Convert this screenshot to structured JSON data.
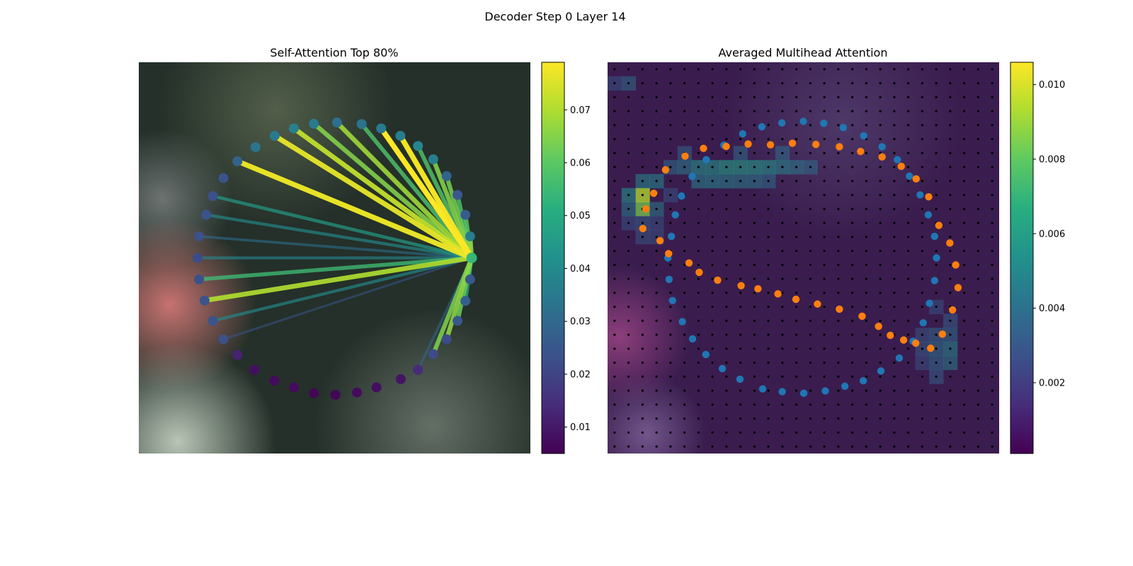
{
  "figure": {
    "suptitle": "Decoder Step 0 Layer 14"
  },
  "chart_data": [
    {
      "type": "scatter",
      "title": "Self-Attention Top 80%",
      "description_kind": "polygon-vertices-with-attention-edges",
      "background": "blurred-image",
      "x_range": [
        0,
        100
      ],
      "y_range": [
        0,
        100
      ],
      "colormap": "viridis",
      "colorbar": {
        "min": 0.005,
        "max": 0.079,
        "ticks": [
          0.01,
          0.02,
          0.03,
          0.04,
          0.05,
          0.06,
          0.07
        ]
      },
      "vertices": [
        {
          "x": 85.0,
          "y": 50.0,
          "v": 0.054
        },
        {
          "x": 84.6,
          "y": 44.5,
          "v": 0.036
        },
        {
          "x": 83.4,
          "y": 39.0,
          "v": 0.026
        },
        {
          "x": 81.4,
          "y": 33.9,
          "v": 0.025
        },
        {
          "x": 78.6,
          "y": 29.1,
          "v": 0.028
        },
        {
          "x": 75.2,
          "y": 24.8,
          "v": 0.036
        },
        {
          "x": 71.3,
          "y": 21.4,
          "v": 0.038
        },
        {
          "x": 66.8,
          "y": 18.8,
          "v": 0.036
        },
        {
          "x": 61.9,
          "y": 16.9,
          "v": 0.035
        },
        {
          "x": 56.9,
          "y": 15.8,
          "v": 0.033
        },
        {
          "x": 50.6,
          "y": 15.4,
          "v": 0.032
        },
        {
          "x": 44.7,
          "y": 15.7,
          "v": 0.035
        },
        {
          "x": 39.6,
          "y": 16.9,
          "v": 0.037
        },
        {
          "x": 34.7,
          "y": 18.8,
          "v": 0.035
        },
        {
          "x": 29.8,
          "y": 21.7,
          "v": 0.033
        },
        {
          "x": 25.2,
          "y": 25.3,
          "v": 0.028
        },
        {
          "x": 21.6,
          "y": 29.6,
          "v": 0.024
        },
        {
          "x": 18.9,
          "y": 34.2,
          "v": 0.023
        },
        {
          "x": 17.2,
          "y": 39.0,
          "v": 0.024
        },
        {
          "x": 15.4,
          "y": 44.5,
          "v": 0.023
        },
        {
          "x": 15.0,
          "y": 50.0,
          "v": 0.022
        },
        {
          "x": 15.4,
          "y": 55.5,
          "v": 0.023
        },
        {
          "x": 16.8,
          "y": 60.9,
          "v": 0.024
        },
        {
          "x": 18.9,
          "y": 66.1,
          "v": 0.024
        },
        {
          "x": 21.6,
          "y": 70.8,
          "v": 0.023
        },
        {
          "x": 25.2,
          "y": 74.8,
          "v": 0.012
        },
        {
          "x": 29.5,
          "y": 78.6,
          "v": 0.008
        },
        {
          "x": 34.6,
          "y": 81.4,
          "v": 0.007
        },
        {
          "x": 39.6,
          "y": 83.1,
          "v": 0.007
        },
        {
          "x": 44.7,
          "y": 84.6,
          "v": 0.006
        },
        {
          "x": 50.2,
          "y": 85.0,
          "v": 0.006
        },
        {
          "x": 55.7,
          "y": 84.4,
          "v": 0.007
        },
        {
          "x": 60.7,
          "y": 83.1,
          "v": 0.008
        },
        {
          "x": 66.9,
          "y": 81.0,
          "v": 0.009
        },
        {
          "x": 71.3,
          "y": 78.6,
          "v": 0.014
        },
        {
          "x": 75.2,
          "y": 74.6,
          "v": 0.022
        },
        {
          "x": 78.6,
          "y": 70.8,
          "v": 0.022
        },
        {
          "x": 81.4,
          "y": 66.1,
          "v": 0.025
        },
        {
          "x": 83.4,
          "y": 61.0,
          "v": 0.027
        },
        {
          "x": 84.6,
          "y": 55.5,
          "v": 0.025
        }
      ],
      "edges": [
        {
          "to": 1,
          "v": 0.066
        },
        {
          "to": 2,
          "v": 0.06
        },
        {
          "to": 3,
          "v": 0.058
        },
        {
          "to": 4,
          "v": 0.063
        },
        {
          "to": 5,
          "v": 0.065
        },
        {
          "to": 6,
          "v": 0.058
        },
        {
          "to": 7,
          "v": 0.078
        },
        {
          "to": 8,
          "v": 0.079
        },
        {
          "to": 9,
          "v": 0.058
        },
        {
          "to": 10,
          "v": 0.068
        },
        {
          "to": 11,
          "v": 0.065
        },
        {
          "to": 12,
          "v": 0.072
        },
        {
          "to": 13,
          "v": 0.076
        },
        {
          "to": 15,
          "v": 0.077
        },
        {
          "to": 17,
          "v": 0.045
        },
        {
          "to": 18,
          "v": 0.04
        },
        {
          "to": 19,
          "v": 0.032
        },
        {
          "to": 20,
          "v": 0.038
        },
        {
          "to": 21,
          "v": 0.055
        },
        {
          "to": 22,
          "v": 0.07
        },
        {
          "to": 23,
          "v": 0.04
        },
        {
          "to": 24,
          "v": 0.025
        },
        {
          "to": 34,
          "v": 0.03
        },
        {
          "to": 35,
          "v": 0.064
        },
        {
          "to": 36,
          "v": 0.066
        },
        {
          "to": 37,
          "v": 0.062
        },
        {
          "to": 38,
          "v": 0.052
        },
        {
          "to": 39,
          "v": 0.034
        }
      ]
    },
    {
      "type": "heatmap",
      "title": "Averaged Multihead Attention",
      "background": "blurred-image",
      "colormap": "viridis",
      "colorbar": {
        "min": 0.0001,
        "max": 0.0106,
        "ticks": [
          0.002,
          0.004,
          0.006,
          0.008,
          0.01
        ]
      },
      "grid_size": 28,
      "heat_cells": [
        {
          "c": 2,
          "r": 9,
          "v": 0.0095
        },
        {
          "c": 2,
          "r": 10,
          "v": 0.0085
        },
        {
          "c": 1,
          "r": 9,
          "v": 0.0055
        },
        {
          "c": 3,
          "r": 8,
          "v": 0.005
        },
        {
          "c": 2,
          "r": 8,
          "v": 0.005
        },
        {
          "c": 3,
          "r": 10,
          "v": 0.0045
        },
        {
          "c": 1,
          "r": 10,
          "v": 0.0045
        },
        {
          "c": 4,
          "r": 7,
          "v": 0.004
        },
        {
          "c": 5,
          "r": 7,
          "v": 0.0045
        },
        {
          "c": 6,
          "r": 7,
          "v": 0.0055
        },
        {
          "c": 7,
          "r": 7,
          "v": 0.0055
        },
        {
          "c": 8,
          "r": 7,
          "v": 0.006
        },
        {
          "c": 9,
          "r": 7,
          "v": 0.006
        },
        {
          "c": 10,
          "r": 7,
          "v": 0.0058
        },
        {
          "c": 11,
          "r": 7,
          "v": 0.0055
        },
        {
          "c": 12,
          "r": 7,
          "v": 0.005
        },
        {
          "c": 13,
          "r": 7,
          "v": 0.0045
        },
        {
          "c": 14,
          "r": 7,
          "v": 0.004
        },
        {
          "c": 6,
          "r": 8,
          "v": 0.0048
        },
        {
          "c": 7,
          "r": 8,
          "v": 0.005
        },
        {
          "c": 8,
          "r": 8,
          "v": 0.0048
        },
        {
          "c": 9,
          "r": 8,
          "v": 0.0045
        },
        {
          "c": 10,
          "r": 8,
          "v": 0.0045
        },
        {
          "c": 11,
          "r": 8,
          "v": 0.004
        },
        {
          "c": 5,
          "r": 6,
          "v": 0.0038
        },
        {
          "c": 9,
          "r": 6,
          "v": 0.004
        },
        {
          "c": 12,
          "r": 6,
          "v": 0.004
        },
        {
          "c": 24,
          "r": 20,
          "v": 0.005
        },
        {
          "c": 24,
          "r": 21,
          "v": 0.0045
        },
        {
          "c": 23,
          "r": 20,
          "v": 0.0042
        },
        {
          "c": 23,
          "r": 21,
          "v": 0.004
        },
        {
          "c": 23,
          "r": 19,
          "v": 0.0038
        },
        {
          "c": 24,
          "r": 19,
          "v": 0.004
        },
        {
          "c": 22,
          "r": 20,
          "v": 0.0035
        },
        {
          "c": 23,
          "r": 22,
          "v": 0.0035
        },
        {
          "c": 22,
          "r": 19,
          "v": 0.0032
        },
        {
          "c": 24,
          "r": 18,
          "v": 0.0035
        },
        {
          "c": 23,
          "r": 17,
          "v": 0.003
        },
        {
          "c": 22,
          "r": 21,
          "v": 0.003
        },
        {
          "c": 2,
          "r": 11,
          "v": 0.0035
        },
        {
          "c": 3,
          "r": 11,
          "v": 0.003
        },
        {
          "c": 2,
          "r": 12,
          "v": 0.0032
        },
        {
          "c": 3,
          "r": 12,
          "v": 0.003
        },
        {
          "c": 1,
          "r": 11,
          "v": 0.003
        },
        {
          "c": 4,
          "r": 9,
          "v": 0.003
        },
        {
          "c": 1,
          "r": 1,
          "v": 0.004
        },
        {
          "c": 0,
          "r": 1,
          "v": 0.003
        }
      ],
      "series": [
        {
          "color": "#1f77b4",
          "points": [
            [
              84.0,
              50.0
            ],
            [
              83.5,
              44.5
            ],
            [
              81.9,
              39.0
            ],
            [
              79.8,
              33.9
            ],
            [
              77.1,
              29.1
            ],
            [
              74.0,
              24.9
            ],
            [
              70.1,
              21.6
            ],
            [
              65.4,
              18.8
            ],
            [
              60.2,
              16.7
            ],
            [
              55.2,
              15.6
            ],
            [
              50.0,
              15.1
            ],
            [
              44.5,
              15.5
            ],
            [
              39.4,
              16.5
            ],
            [
              34.5,
              18.3
            ],
            [
              29.7,
              21.2
            ],
            [
              25.2,
              24.9
            ],
            [
              21.6,
              29.2
            ],
            [
              18.9,
              34.2
            ],
            [
              17.3,
              39.0
            ],
            [
              16.3,
              44.5
            ],
            [
              15.4,
              50.0
            ],
            [
              15.7,
              55.5
            ],
            [
              16.6,
              60.9
            ],
            [
              19.1,
              66.3
            ],
            [
              21.7,
              70.7
            ],
            [
              25.1,
              74.7
            ],
            [
              29.3,
              78.3
            ],
            [
              33.8,
              81.0
            ],
            [
              39.6,
              83.5
            ],
            [
              44.6,
              84.2
            ],
            [
              50.1,
              84.6
            ],
            [
              55.6,
              84.0
            ],
            [
              60.6,
              82.8
            ],
            [
              65.3,
              81.4
            ],
            [
              69.8,
              78.9
            ],
            [
              74.5,
              75.6
            ],
            [
              78.0,
              71.3
            ],
            [
              80.6,
              66.6
            ],
            [
              82.2,
              61.6
            ],
            [
              83.5,
              55.8
            ]
          ]
        },
        {
          "color": "#ff7f0e",
          "points": [
            [
              9.0,
              42.5
            ],
            [
              9.8,
              37.5
            ],
            [
              11.8,
              33.5
            ],
            [
              14.8,
              27.5
            ],
            [
              19.8,
              24.0
            ],
            [
              24.5,
              22.0
            ],
            [
              30.3,
              21.5
            ],
            [
              35.9,
              20.9
            ],
            [
              41.6,
              21.1
            ],
            [
              47.2,
              20.7
            ],
            [
              53.2,
              21.0
            ],
            [
              59.2,
              21.6
            ],
            [
              64.6,
              22.8
            ],
            [
              70.1,
              24.2
            ],
            [
              75.0,
              26.6
            ],
            [
              78.8,
              29.8
            ],
            [
              82.0,
              34.4
            ],
            [
              84.6,
              41.7
            ],
            [
              87.4,
              46.2
            ],
            [
              88.9,
              51.8
            ],
            [
              89.5,
              57.6
            ],
            [
              88.1,
              63.3
            ],
            [
              85.5,
              69.5
            ],
            [
              82.5,
              73.1
            ],
            [
              78.7,
              71.8
            ],
            [
              75.6,
              71.0
            ],
            [
              72.2,
              69.8
            ],
            [
              69.2,
              67.5
            ],
            [
              65.0,
              64.9
            ],
            [
              59.2,
              63.1
            ],
            [
              53.6,
              61.8
            ],
            [
              48.1,
              60.6
            ],
            [
              43.5,
              59.2
            ],
            [
              38.4,
              57.9
            ],
            [
              34.1,
              57.1
            ],
            [
              28.1,
              55.7
            ],
            [
              23.4,
              53.7
            ],
            [
              20.8,
              51.3
            ],
            [
              15.6,
              48.9
            ],
            [
              13.4,
              45.6
            ]
          ]
        }
      ]
    }
  ]
}
